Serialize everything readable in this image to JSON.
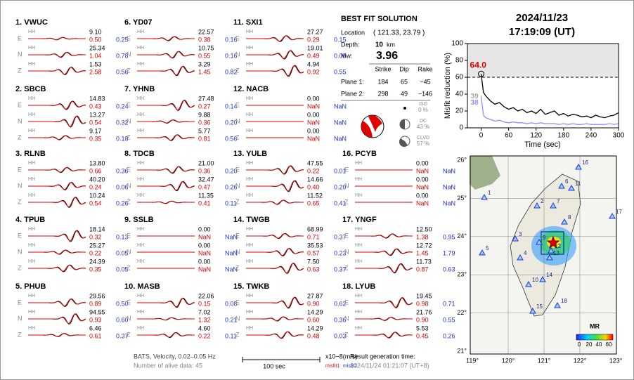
{
  "header": {
    "date": "2024/11/23",
    "time": "17:19:09  (UT)"
  },
  "channel": "HH",
  "components": [
    "E",
    "N",
    "Z"
  ],
  "stations": [
    {
      "title": "1.  VWUC",
      "traces": [
        [
          "9.10",
          "0.50",
          "0.25"
        ],
        [
          "25.34",
          "1.04",
          "0.78"
        ],
        [
          "1.53",
          "2.58",
          "0.56"
        ]
      ]
    },
    {
      "title": "2.  SBCB",
      "traces": [
        [
          "14.83",
          "0.43",
          "0.24"
        ],
        [
          "13.27",
          "0.54",
          "0.32"
        ],
        [
          "9.17",
          "0.35",
          "0.18"
        ]
      ]
    },
    {
      "title": "3.  RLNB",
      "traces": [
        [
          "13.80",
          "0.66",
          "0.36"
        ],
        [
          "40.20",
          "0.24",
          "0.06"
        ],
        [
          "10.24",
          "0.54",
          "0.26"
        ]
      ]
    },
    {
      "title": "4.  TPUB",
      "traces": [
        [
          "18.14",
          "0.32",
          "0.13"
        ],
        [
          "25.27",
          "0.22",
          "0.05"
        ],
        [
          "24.39",
          "0.35",
          "0.05"
        ]
      ]
    },
    {
      "title": "5.  PHUB",
      "traces": [
        [
          "29.56",
          "0.89",
          "0.50"
        ],
        [
          "94.55",
          "0.93",
          "0.60"
        ],
        [
          "6.46",
          "0.61",
          "0.37"
        ]
      ]
    },
    {
      "title": "6.  YD07",
      "traces": [
        [
          "22.57",
          "0.38",
          "0.16"
        ],
        [
          "10.75",
          "0.55",
          "0.16"
        ],
        [
          "3.29",
          "1.45",
          "0.82"
        ]
      ]
    },
    {
      "title": "7.  YHNB",
      "traces": [
        [
          "27.48",
          "0.27",
          "0.14"
        ],
        [
          "9.88",
          "0.36",
          "0.20"
        ],
        [
          "5.77",
          "0.81",
          "0.56"
        ]
      ]
    },
    {
      "title": "8.  TDCB",
      "traces": [
        [
          "21.00",
          "0.36",
          "0.20"
        ],
        [
          "32.47",
          "0.47",
          "0.26"
        ],
        [
          "11.35",
          "0.41",
          "0.11"
        ]
      ]
    },
    {
      "title": "9.  SSLB",
      "traces": [
        [
          "0.00",
          "NaN",
          "NaN"
        ],
        [
          "0.00",
          "NaN",
          "NaN"
        ],
        [
          "0.00",
          "NaN",
          "NaN"
        ]
      ]
    },
    {
      "title": "10.  MASB",
      "traces": [
        [
          "22.06",
          "0.15",
          "0.08"
        ],
        [
          "7.02",
          "1.32",
          "0.21"
        ],
        [
          "4.60",
          "0.22",
          "0.11"
        ]
      ]
    },
    {
      "title": "11.  SXI1",
      "traces": [
        [
          "27.27",
          "0.29",
          "0.15"
        ],
        [
          "19.01",
          "0.49",
          "0.06"
        ],
        [
          "4.94",
          "0.92",
          "0.55"
        ]
      ]
    },
    {
      "title": "12.  NACB",
      "traces": [
        [
          "0.00",
          "NaN",
          "NaN"
        ],
        [
          "0.00",
          "NaN",
          "NaN"
        ],
        [
          "0.00",
          "NaN",
          "NaN"
        ]
      ]
    },
    {
      "title": "13.  YULB",
      "traces": [
        [
          "47.55",
          "0.22",
          "0.01"
        ],
        [
          "14.66",
          "0.40",
          "0.20"
        ],
        [
          "11.52",
          "0.65",
          "0.41"
        ]
      ]
    },
    {
      "title": "14.  TWGB",
      "traces": [
        [
          "68.99",
          "0.71",
          "0.37"
        ],
        [
          "35.53",
          "0.57",
          "0.23"
        ],
        [
          "7.50",
          "0.63",
          "0.37"
        ]
      ]
    },
    {
      "title": "15.  TWKB",
      "traces": [
        [
          "27.87",
          "0.90",
          "0.62"
        ],
        [
          "14.29",
          "0.60",
          "0.36"
        ],
        [
          "14.29",
          "0.48",
          "0.03"
        ]
      ]
    },
    {
      "title": "16.  PCYB",
      "traces": [
        [
          "0.00",
          "NaN",
          "NaN"
        ],
        [
          "0.00",
          "NaN",
          "NaN"
        ],
        [
          "0.00",
          "NaN",
          "NaN"
        ]
      ]
    },
    {
      "title": "17.  YNGF",
      "traces": [
        [
          "12.50",
          "1.38",
          "0.95"
        ],
        [
          "12.72",
          "1.45",
          "1.79"
        ],
        [
          "11.73",
          "0.87",
          "0.63"
        ]
      ]
    },
    {
      "title": "18.  LYUB",
      "traces": [
        [
          "19.45",
          "0.98",
          "0.71"
        ],
        [
          "21.76",
          "0.90",
          "0.55"
        ],
        [
          "5.53",
          "0.45",
          "0.26"
        ]
      ]
    }
  ],
  "solution": {
    "title": "BEST FIT SOLUTION",
    "location_label": "Location",
    "location": "( 121.33, 23.79 )",
    "depth_label": "Depth:",
    "depth": "10",
    "depth_unit": "km",
    "mw_label": "Mw:",
    "mw": "3.96",
    "columns": [
      "Strike",
      "Dip",
      "Rake"
    ],
    "planes": [
      {
        "label": "Plane 1:",
        "values": [
          "184",
          "65",
          "−45"
        ]
      },
      {
        "label": "Plane 2:",
        "values": [
          "298",
          "49",
          "−146"
        ]
      }
    ],
    "components": [
      {
        "name": "ISO",
        "percent": "0 %"
      },
      {
        "name": "DC",
        "percent": "43 %"
      },
      {
        "name": "CLVD",
        "percent": "57 %"
      }
    ]
  },
  "chart_data": {
    "type": "line",
    "xlabel": "Time (sec)",
    "ylabel": "Misfit reduction (%)",
    "x": [
      0,
      5,
      10,
      20,
      30,
      40,
      50,
      60,
      70,
      80,
      90,
      100,
      110,
      120,
      130,
      140,
      150,
      160,
      170,
      180,
      190,
      200,
      210,
      220,
      230,
      240,
      250,
      260,
      270,
      280,
      290,
      300
    ],
    "series": [
      {
        "color": "#000000",
        "values": [
          64,
          42,
          38,
          32,
          28,
          30,
          25,
          22,
          24,
          20,
          22,
          18,
          20,
          17,
          22,
          16,
          18,
          20,
          15,
          17,
          14,
          16,
          15,
          13,
          14,
          12,
          15,
          13,
          12,
          14,
          15,
          18
        ]
      },
      {
        "color": "#ffffff",
        "values": [
          39,
          30,
          26,
          22,
          20,
          18,
          17,
          15,
          16,
          14,
          13,
          12,
          13,
          11,
          12,
          11,
          10,
          11,
          10,
          9,
          10,
          9,
          9,
          8,
          9,
          8,
          9,
          8,
          8,
          9,
          9,
          10
        ]
      },
      {
        "color": "#8f8fff",
        "values": [
          38,
          15,
          12,
          10,
          8,
          9,
          7,
          6,
          7,
          6,
          6,
          5,
          6,
          5,
          6,
          5,
          5,
          5,
          4,
          5,
          4,
          5,
          4,
          4,
          5,
          4,
          4,
          4,
          4,
          5,
          4,
          5
        ]
      }
    ],
    "xlim": [
      -30,
      300
    ],
    "xticks": [
      0,
      60,
      120,
      180,
      240,
      300
    ],
    "ylim": [
      0,
      100
    ],
    "yticks": [
      0,
      20,
      40,
      60,
      80,
      100
    ],
    "threshold": 60,
    "peak_label": "64.0",
    "start_labels": [
      "39",
      "38"
    ]
  },
  "map": {
    "lon_ticks": [
      "119°",
      "120°",
      "121°",
      "122°",
      "123°"
    ],
    "lat_ticks": [
      "26°",
      "25°",
      "24°",
      "23°",
      "22°",
      "21°"
    ],
    "station_labels": [
      "1",
      "2",
      "3",
      "4",
      "5",
      "6",
      "7",
      "8",
      "9",
      "10",
      "11",
      "12",
      "13",
      "14",
      "15",
      "16",
      "17",
      "18"
    ],
    "colorbar_title": "MR",
    "colorbar_labels": [
      "0",
      "20",
      "40",
      "60"
    ]
  },
  "footer": {
    "filter": "BATS, Velocity, 0.02–0.05 Hz",
    "alive": "Number of alive data: 45",
    "scale": "100 sec",
    "unit": "x10−8(m/s)",
    "misfit1": "misfit1",
    "misfit2": "misfit2",
    "result_label": "Result generation time:",
    "result_time": "2024/11/24 01:21:07 (UT+8)"
  }
}
